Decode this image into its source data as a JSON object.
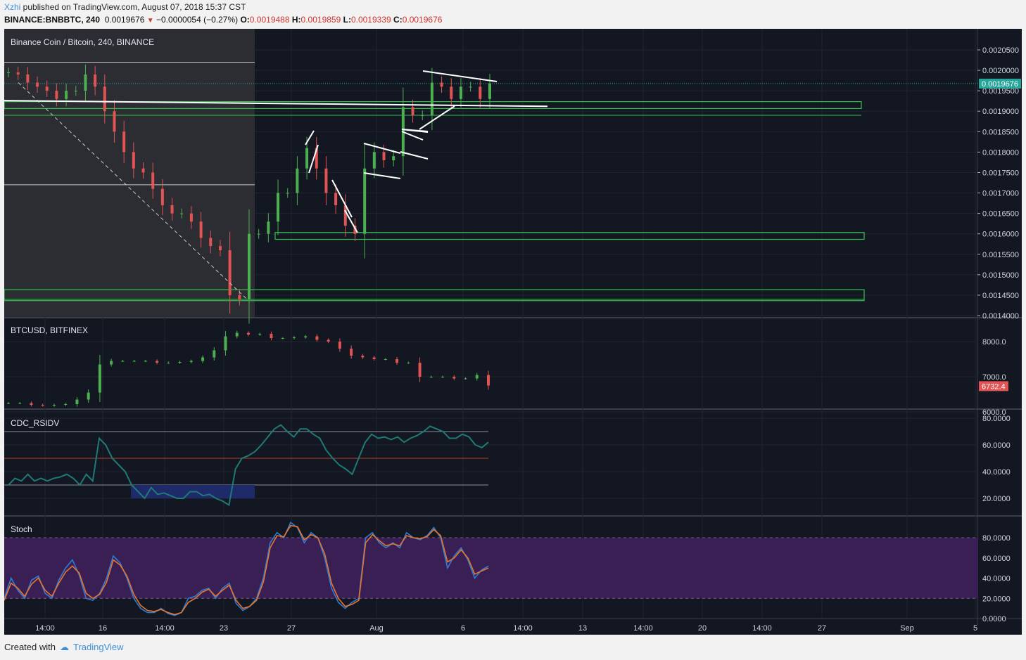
{
  "header": {
    "user": "Xzhi",
    "published": " published on TradingView.com, August 07, 2018 15:37 CST",
    "symbol": "BINANCE:BNBBTC, 240",
    "last": "0.0019676",
    "change": "−0.0000054 (−0.27%)",
    "o_label": "O:",
    "o_value": "0.0019488",
    "h_label": "H:",
    "h_value": "0.0019859",
    "l_label": "L:",
    "l_value": "0.0019339",
    "c_label": "C:",
    "c_value": "0.0019676"
  },
  "footer": {
    "created_with": "Created with",
    "brand": "TradingView"
  },
  "colors": {
    "up": "#4caf50",
    "down": "#e25353",
    "zone": "#31c24a",
    "background": "#131722",
    "rsi_line": "#1f7a75",
    "stoch_k": "#2f7bd6",
    "stoch_d": "#e5762c",
    "stoch_band": "#3a1f55"
  },
  "chart_data": [
    {
      "type": "candlestick",
      "title": "Binance Coin / Bitcoin, 240, BINANCE",
      "last_value": "0.0019676",
      "y_ticks": [
        "0.0020500",
        "0.0020000",
        "0.0019500",
        "0.0019000",
        "0.0018500",
        "0.0018000",
        "0.0017500",
        "0.0017000",
        "0.0016500",
        "0.0016000",
        "0.0015500",
        "0.0015000",
        "0.0014500",
        "0.0014000"
      ],
      "ylim": [
        0.0014,
        0.00205
      ],
      "x_ticks": [
        "14:00",
        "16",
        "14:00",
        "23",
        "27",
        "Aug",
        "6",
        "14:00",
        "13",
        "14:00",
        "20",
        "14:00",
        "27",
        "Sep",
        "5"
      ],
      "horizontal_levels": [
        0.00202,
        0.00189,
        0.00172
      ],
      "zones": [
        [
          0.00191,
          0.00192
        ],
        [
          0.00159,
          0.0016
        ],
        [
          0.00144,
          0.00146
        ]
      ],
      "close_path": [
        0.001995,
        0.00199,
        0.00197,
        0.00196,
        0.00195,
        0.00193,
        0.00195,
        0.00195,
        0.00199,
        0.00196,
        0.0019,
        0.00185,
        0.0018,
        0.00176,
        0.00175,
        0.00171,
        0.00167,
        0.00165,
        0.00165,
        0.00163,
        0.00159,
        0.00157,
        0.00156,
        0.00145,
        0.00144,
        0.0016,
        0.0016,
        0.00163,
        0.0017,
        0.0017,
        0.00176,
        0.00181,
        0.00176,
        0.0017,
        0.00167,
        0.00162,
        0.0016,
        0.00176,
        0.0018,
        0.00178,
        0.00179,
        0.00191,
        0.00189,
        0.00189,
        0.00197,
        0.00196,
        0.00193,
        0.00196,
        0.00196,
        0.00193,
        0.001968
      ]
    },
    {
      "type": "candlestick",
      "title": "BTCUSD, BITFINEX",
      "last_value": "6732.4",
      "y_ticks": [
        "8000.0",
        "7000.0",
        "6000.0"
      ],
      "ylim": [
        6000,
        8500
      ],
      "close_path": [
        6250,
        6250,
        6200,
        6180,
        6200,
        6220,
        6350,
        6550,
        7350,
        7450,
        7450,
        7450,
        7450,
        7400,
        7400,
        7420,
        7450,
        7550,
        7750,
        8150,
        8250,
        8200,
        8220,
        8100,
        8100,
        8120,
        8150,
        8050,
        8000,
        7800,
        7600,
        7550,
        7500,
        7500,
        7400,
        7400,
        7000,
        7000,
        7000,
        6950,
        6950,
        7050,
        6750
      ]
    },
    {
      "type": "line",
      "title": "CDC_RSIDV",
      "y_ticks": [
        "80.0000",
        "60.0000",
        "40.0000",
        "20.0000"
      ],
      "ylim": [
        0,
        100
      ],
      "levels": [
        70,
        50,
        30
      ],
      "values": [
        30,
        35,
        33,
        38,
        33,
        35,
        33,
        35,
        36,
        38,
        35,
        30,
        38,
        33,
        65,
        60,
        50,
        45,
        40,
        30,
        25,
        20,
        28,
        23,
        24,
        22,
        20,
        20,
        25,
        25,
        22,
        23,
        20,
        18,
        15,
        42,
        50,
        52,
        55,
        60,
        66,
        72,
        75,
        70,
        66,
        72,
        72,
        68,
        65,
        56,
        50,
        45,
        42,
        38,
        50,
        62,
        68,
        65,
        66,
        64,
        66,
        62,
        65,
        67,
        70,
        74,
        72,
        70,
        65,
        65,
        68,
        66,
        60,
        58,
        62
      ]
    },
    {
      "type": "line",
      "title": "Stoch",
      "y_ticks": [
        "80.0000",
        "60.0000",
        "40.0000",
        "20.0000",
        "0.0000"
      ],
      "ylim": [
        0,
        100
      ],
      "levels": [
        80,
        20
      ],
      "series": [
        {
          "values": [
            20,
            40,
            28,
            20,
            38,
            42,
            25,
            20,
            38,
            50,
            58,
            43,
            20,
            18,
            25,
            40,
            62,
            55,
            40,
            20,
            10,
            6,
            6,
            10,
            5,
            3,
            6,
            20,
            22,
            28,
            30,
            20,
            30,
            35,
            15,
            8,
            12,
            20,
            40,
            75,
            85,
            80,
            95,
            90,
            75,
            85,
            80,
            60,
            30,
            16,
            10,
            16,
            20,
            80,
            85,
            75,
            70,
            75,
            70,
            85,
            80,
            78,
            82,
            90,
            80,
            50,
            62,
            70,
            58,
            40,
            48,
            52
          ]
        },
        {
          "values": [
            18,
            35,
            30,
            22,
            34,
            40,
            28,
            22,
            35,
            46,
            52,
            45,
            25,
            20,
            24,
            36,
            58,
            53,
            42,
            24,
            13,
            8,
            7,
            9,
            6,
            4,
            6,
            16,
            20,
            26,
            29,
            22,
            28,
            33,
            18,
            10,
            12,
            18,
            36,
            70,
            82,
            81,
            92,
            91,
            78,
            83,
            80,
            64,
            35,
            20,
            12,
            14,
            18,
            75,
            83,
            77,
            72,
            74,
            72,
            82,
            80,
            79,
            81,
            88,
            82,
            56,
            60,
            68,
            60,
            44,
            47,
            50
          ]
        }
      ]
    }
  ]
}
